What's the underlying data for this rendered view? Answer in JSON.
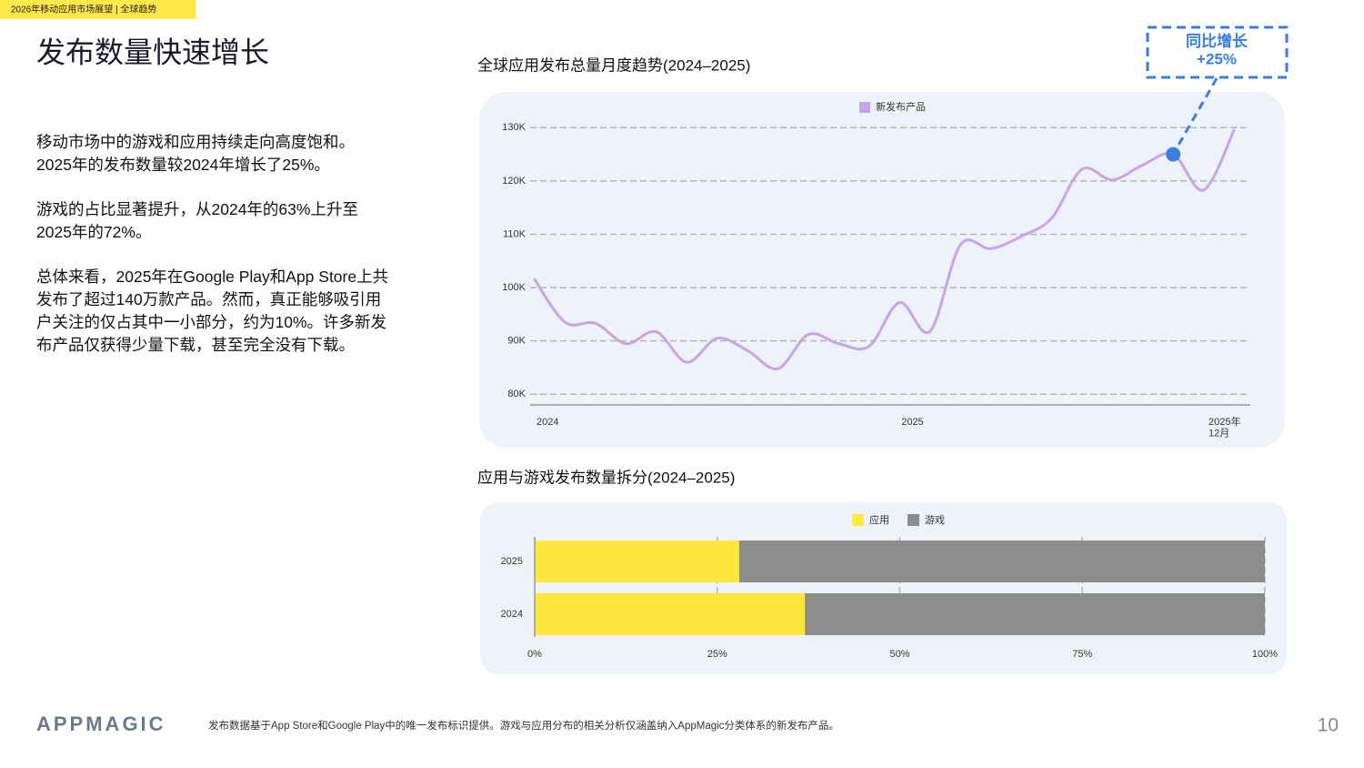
{
  "header": {
    "tag": "2026年移动应用市场展望 | 全球趋势",
    "title": "发布数量快速增长"
  },
  "body": {
    "paragraphs": [
      "移动市场中的游戏和应用持续走向高度饱和。\n2025年的发布数量较2024年增长了25%。",
      "游戏的占比显著提升，从2024年的63%上升至\n2025年的72%。",
      "总体来看，2025年在Google Play和App Store上共\n发布了超过140万款产品。然而，真正能够吸引用\n户关注的仅占其中一小部分，约为10%。许多新发\n布产品仅获得少量下载，甚至完全没有下载。"
    ]
  },
  "chart_data": [
    {
      "type": "line",
      "title": "全球应用发布总量月度趋势(2024–2025)",
      "categories": [
        "2024",
        null,
        null,
        null,
        null,
        null,
        null,
        null,
        null,
        null,
        null,
        null,
        "2025",
        null,
        null,
        null,
        null,
        null,
        null,
        null,
        null,
        null,
        null,
        "2025年\n12月"
      ],
      "series": [
        {
          "name": "新发布产品",
          "color": "#c9a3ea",
          "values": [
            101500,
            93500,
            93300,
            89500,
            91700,
            86000,
            90500,
            88200,
            84800,
            91200,
            89500,
            89000,
            97200,
            91800,
            108000,
            107300,
            109600,
            113000,
            122200,
            120200,
            123000,
            125000,
            118300,
            129500
          ]
        }
      ],
      "ylim": [
        78000,
        131500
      ],
      "yticks": [
        {
          "value": 80000,
          "label": "80K"
        },
        {
          "value": 90000,
          "label": "90K"
        },
        {
          "value": 100000,
          "label": "100K"
        },
        {
          "value": 110000,
          "label": "110K"
        },
        {
          "value": 120000,
          "label": "120K"
        },
        {
          "value": 130000,
          "label": "130K"
        }
      ],
      "grid": true,
      "annotation": "同比增长\n+25%"
    },
    {
      "type": "bar",
      "orientation": "horizontal",
      "stacked": true,
      "title": "应用与游戏发布数量拆分(2024–2025)",
      "categories": [
        "2025",
        "2024"
      ],
      "series": [
        {
          "name": "应用",
          "color": "#ffe83b",
          "values": [
            28,
            37
          ]
        },
        {
          "name": "游戏",
          "color": "#8c8c8c",
          "values": [
            72,
            63
          ]
        }
      ],
      "xlim": [
        0,
        100
      ],
      "xticks": [
        {
          "value": 0,
          "label": "0%"
        },
        {
          "value": 25,
          "label": "25%"
        },
        {
          "value": 50,
          "label": "50%"
        },
        {
          "value": 75,
          "label": "75%"
        },
        {
          "value": 100,
          "label": "100%"
        }
      ],
      "grid": true
    }
  ],
  "footer": {
    "logo": "APPMAGIC",
    "note": "发布数据基于App Store和Google Play中的唯一发布标识提供。游戏与应用分布的相关分析仅涵盖纳入AppMagic分类体系的新发布产品。",
    "page": "10"
  }
}
